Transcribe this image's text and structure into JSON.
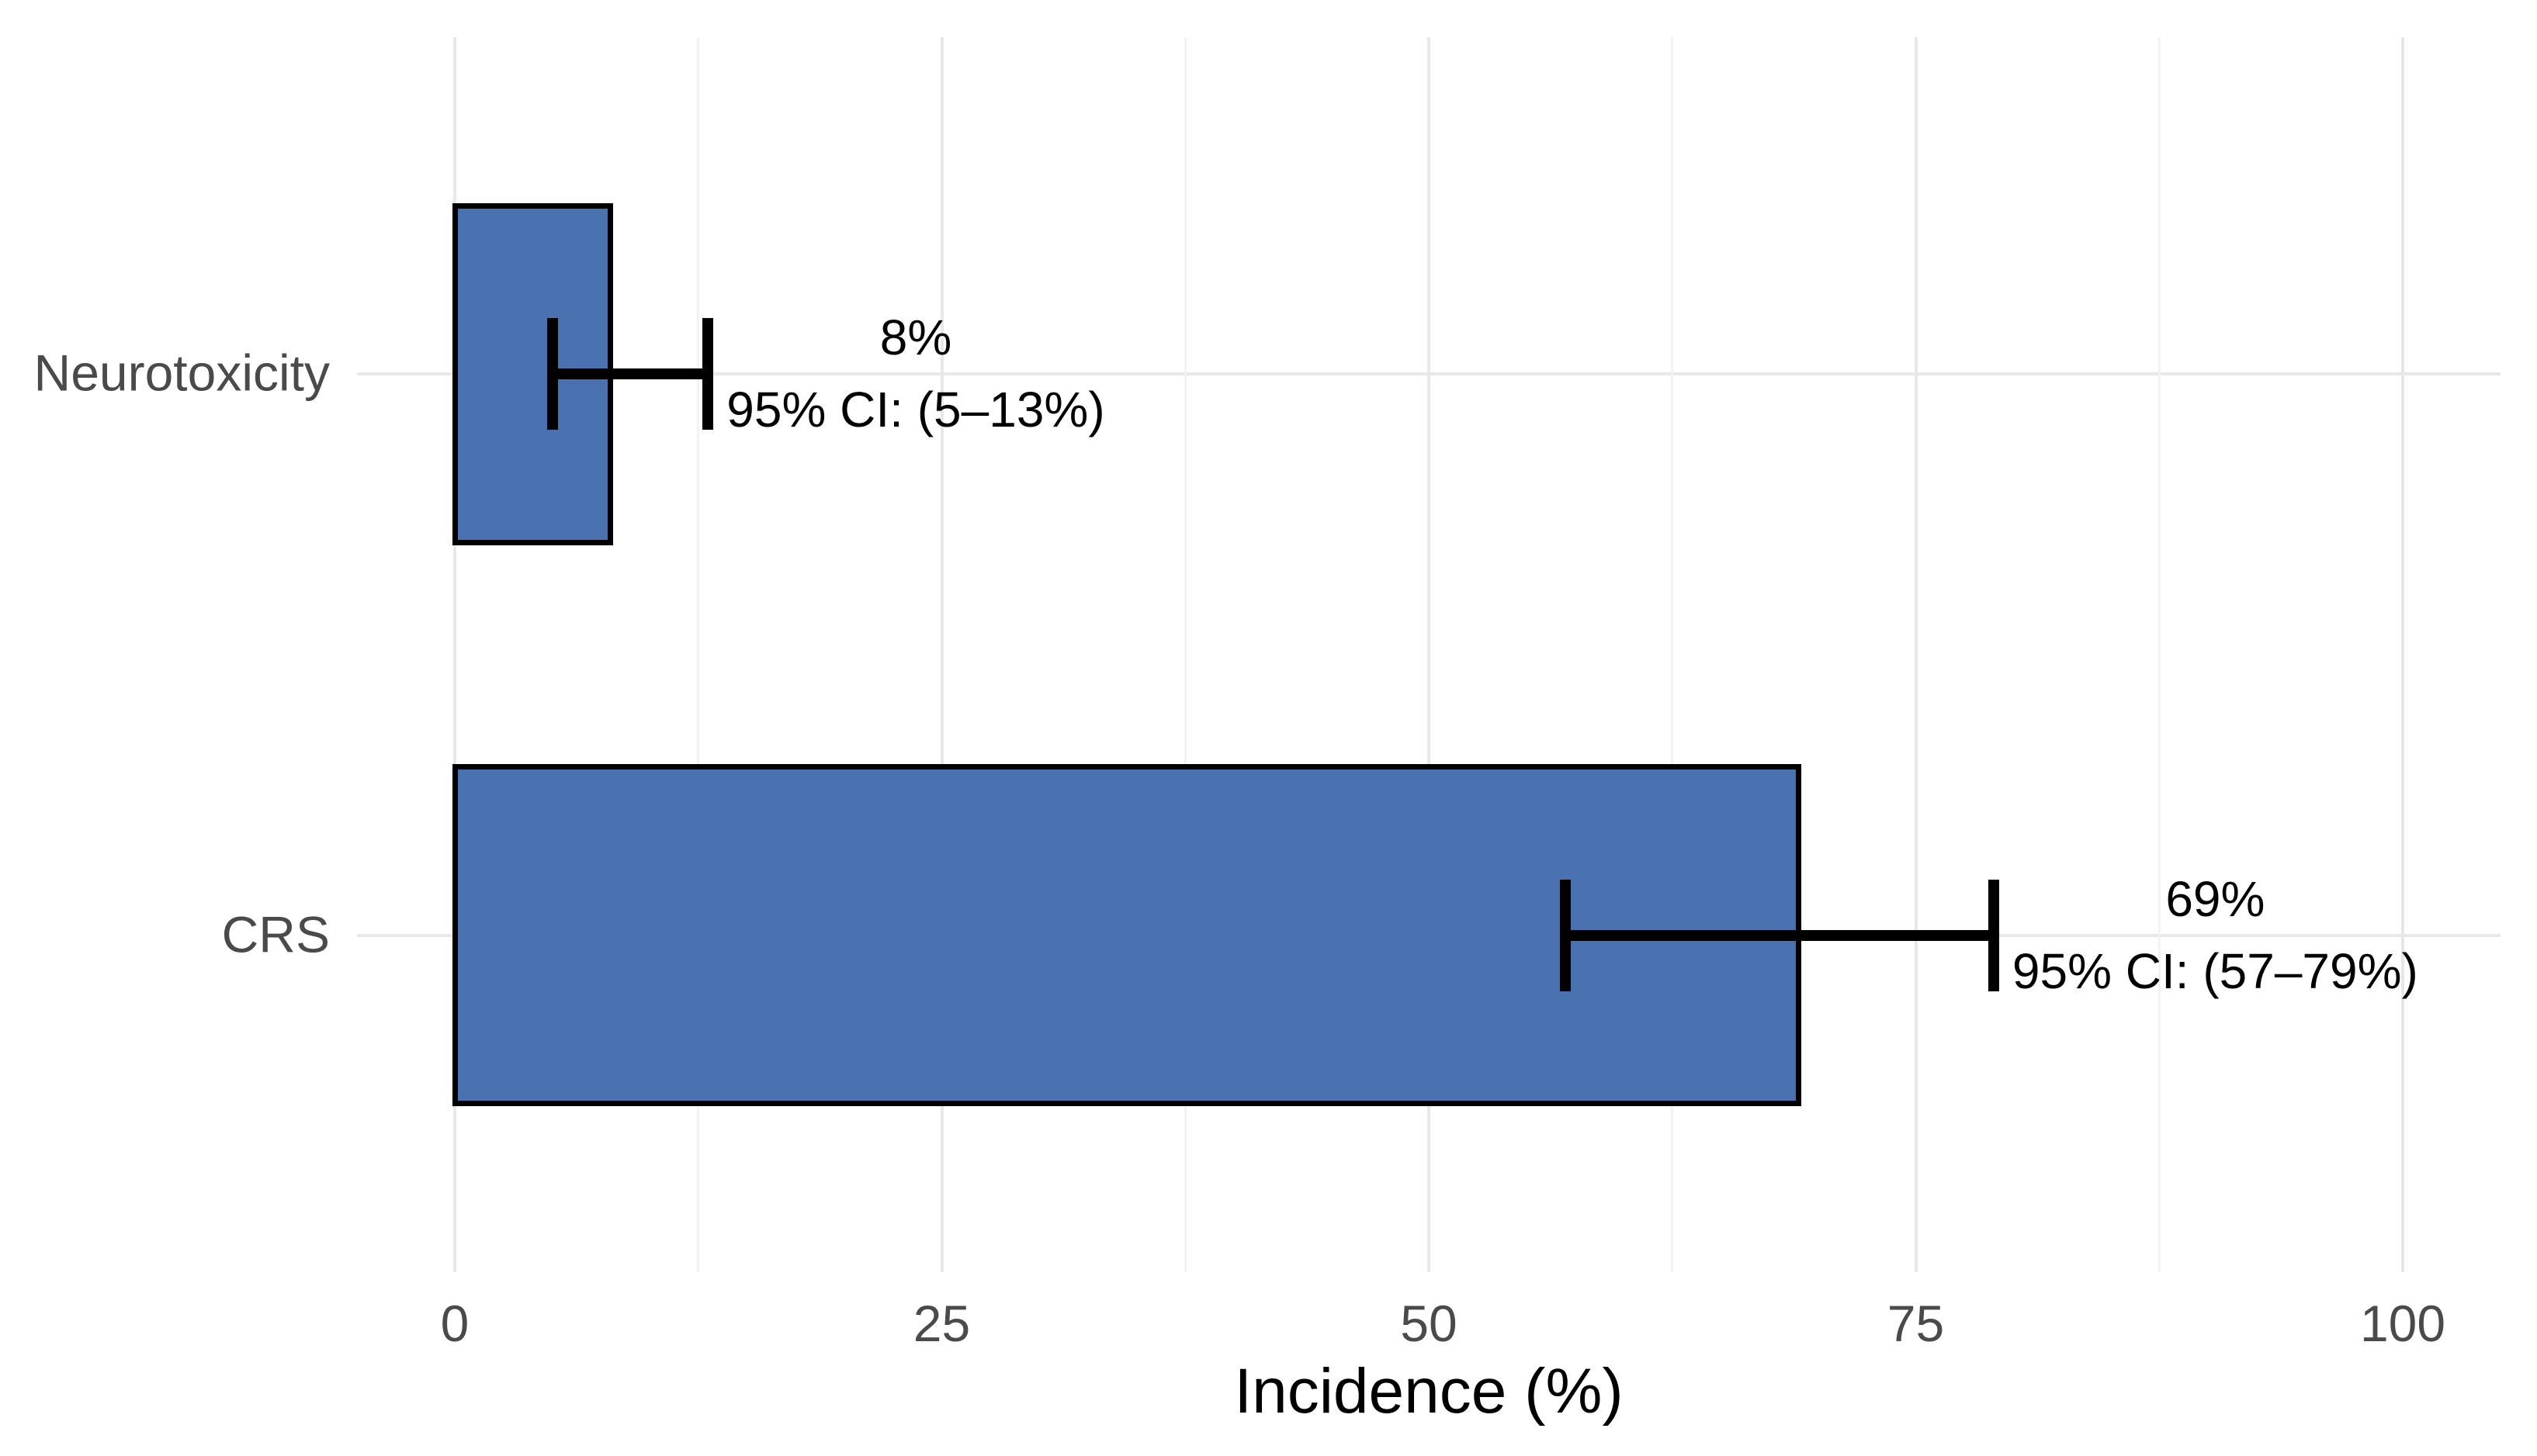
{
  "figure": {
    "background_color": "#ffffff",
    "bar_fill_color": "#4A72B1",
    "bar_stroke_color": "#000000",
    "errorbar_color": "#000000",
    "grid_major_color": "#e8e8e8",
    "grid_minor_color": "#f2f2f2",
    "axis_text_color": "#4a4a4a",
    "annotation_text_color": "#000000"
  },
  "chart_data": {
    "type": "bar",
    "orientation": "horizontal",
    "title": "",
    "xlabel": "Incidence (%)",
    "ylabel": "",
    "xlim": [
      0,
      100
    ],
    "xticks": [
      0,
      25,
      50,
      75,
      100
    ],
    "xtick_labels": [
      "0",
      "25",
      "50",
      "75",
      "100"
    ],
    "minor_ticks": [
      12.5,
      37.5,
      62.5,
      87.5
    ],
    "grid": "on",
    "legend": "none",
    "categories": [
      "Neurotoxicity",
      "CRS"
    ],
    "series": [
      {
        "name": "Incidence",
        "values": [
          8,
          69
        ],
        "ci_low": [
          5,
          57
        ],
        "ci_high": [
          13,
          79
        ]
      }
    ],
    "annotations": [
      {
        "value_label": "8%",
        "ci_label": "95% CI: (5–13%)"
      },
      {
        "value_label": "69%",
        "ci_label": "95% CI: (57–79%)"
      }
    ]
  }
}
